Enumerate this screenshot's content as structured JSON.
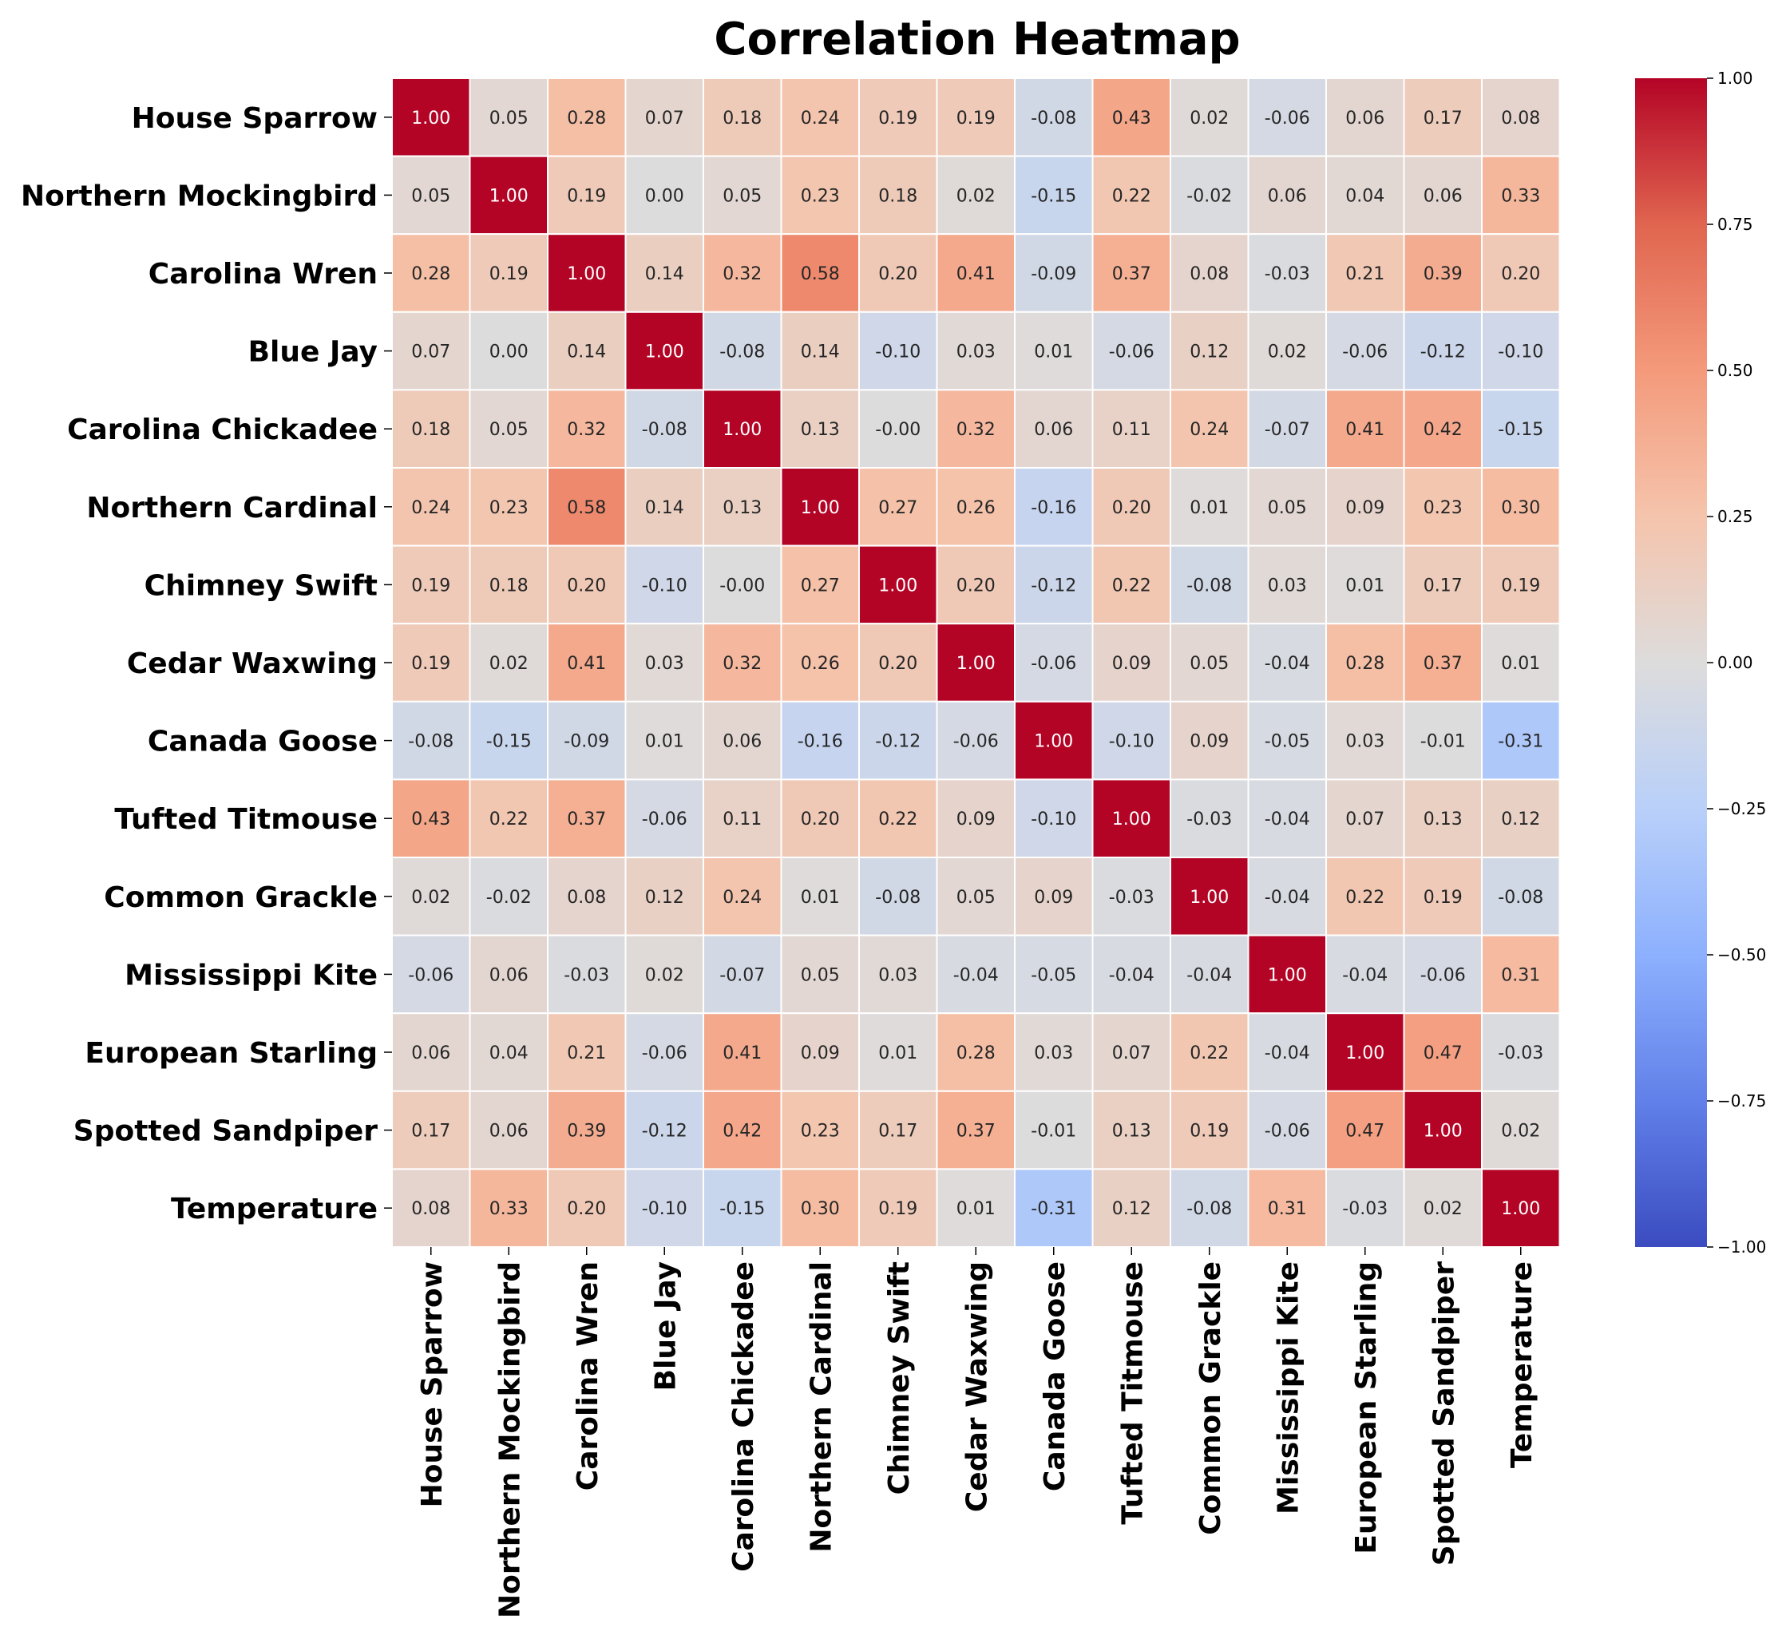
{
  "chart_data": {
    "type": "heatmap",
    "title": "Correlation Heatmap",
    "row_labels": [
      "House Sparrow",
      "Northern Mockingbird",
      "Carolina Wren",
      "Blue Jay",
      "Carolina Chickadee",
      "Northern Cardinal",
      "Chimney Swift",
      "Cedar Waxwing",
      "Canada Goose",
      "Tufted Titmouse",
      "Common Grackle",
      "Mississippi Kite",
      "European Starling",
      "Spotted Sandpiper",
      "Temperature"
    ],
    "col_labels": [
      "House Sparrow",
      "Northern Mockingbird",
      "Carolina Wren",
      "Blue Jay",
      "Carolina Chickadee",
      "Northern Cardinal",
      "Chimney Swift",
      "Cedar Waxwing",
      "Canada Goose",
      "Tufted Titmouse",
      "Common Grackle",
      "Mississippi Kite",
      "European Starling",
      "Spotted Sandpiper",
      "Temperature"
    ],
    "values": [
      [
        1.0,
        0.05,
        0.28,
        0.07,
        0.18,
        0.24,
        0.19,
        0.19,
        -0.08,
        0.43,
        0.02,
        -0.06,
        0.06,
        0.17,
        0.08
      ],
      [
        0.05,
        1.0,
        0.19,
        0.0,
        0.05,
        0.23,
        0.18,
        0.02,
        -0.15,
        0.22,
        -0.02,
        0.06,
        0.04,
        0.06,
        0.33
      ],
      [
        0.28,
        0.19,
        1.0,
        0.14,
        0.32,
        0.58,
        0.2,
        0.41,
        -0.09,
        0.37,
        0.08,
        -0.03,
        0.21,
        0.39,
        0.2
      ],
      [
        0.07,
        0.0,
        0.14,
        1.0,
        -0.08,
        0.14,
        -0.1,
        0.03,
        0.01,
        -0.06,
        0.12,
        0.02,
        -0.06,
        -0.12,
        -0.1
      ],
      [
        0.18,
        0.05,
        0.32,
        -0.08,
        1.0,
        0.13,
        -0.0,
        0.32,
        0.06,
        0.11,
        0.24,
        -0.07,
        0.41,
        0.42,
        -0.15
      ],
      [
        0.24,
        0.23,
        0.58,
        0.14,
        0.13,
        1.0,
        0.27,
        0.26,
        -0.16,
        0.2,
        0.01,
        0.05,
        0.09,
        0.23,
        0.3
      ],
      [
        0.19,
        0.18,
        0.2,
        -0.1,
        -0.0,
        0.27,
        1.0,
        0.2,
        -0.12,
        0.22,
        -0.08,
        0.03,
        0.01,
        0.17,
        0.19
      ],
      [
        0.19,
        0.02,
        0.41,
        0.03,
        0.32,
        0.26,
        0.2,
        1.0,
        -0.06,
        0.09,
        0.05,
        -0.04,
        0.28,
        0.37,
        0.01
      ],
      [
        -0.08,
        -0.15,
        -0.09,
        0.01,
        0.06,
        -0.16,
        -0.12,
        -0.06,
        1.0,
        -0.1,
        0.09,
        -0.05,
        0.03,
        -0.01,
        -0.31
      ],
      [
        0.43,
        0.22,
        0.37,
        -0.06,
        0.11,
        0.2,
        0.22,
        0.09,
        -0.1,
        1.0,
        -0.03,
        -0.04,
        0.07,
        0.13,
        0.12
      ],
      [
        0.02,
        -0.02,
        0.08,
        0.12,
        0.24,
        0.01,
        -0.08,
        0.05,
        0.09,
        -0.03,
        1.0,
        -0.04,
        0.22,
        0.19,
        -0.08
      ],
      [
        -0.06,
        0.06,
        -0.03,
        0.02,
        -0.07,
        0.05,
        0.03,
        -0.04,
        -0.05,
        -0.04,
        -0.04,
        1.0,
        -0.04,
        -0.06,
        0.31
      ],
      [
        0.06,
        0.04,
        0.21,
        -0.06,
        0.41,
        0.09,
        0.01,
        0.28,
        0.03,
        0.07,
        0.22,
        -0.04,
        1.0,
        0.47,
        -0.03
      ],
      [
        0.17,
        0.06,
        0.39,
        -0.12,
        0.42,
        0.23,
        0.17,
        0.37,
        -0.01,
        0.13,
        0.19,
        -0.06,
        0.47,
        1.0,
        0.02
      ],
      [
        0.08,
        0.33,
        0.2,
        -0.1,
        -0.15,
        0.3,
        0.19,
        0.01,
        -0.31,
        0.12,
        -0.08,
        0.31,
        -0.03,
        0.02,
        1.0
      ]
    ],
    "cell_labels": [
      [
        "1.00",
        "0.05",
        "0.28",
        "0.07",
        "0.18",
        "0.24",
        "0.19",
        "0.19",
        "-0.08",
        "0.43",
        "0.02",
        "-0.06",
        "0.06",
        "0.17",
        "0.08"
      ],
      [
        "0.05",
        "1.00",
        "0.19",
        "0.00",
        "0.05",
        "0.23",
        "0.18",
        "0.02",
        "-0.15",
        "0.22",
        "-0.02",
        "0.06",
        "0.04",
        "0.06",
        "0.33"
      ],
      [
        "0.28",
        "0.19",
        "1.00",
        "0.14",
        "0.32",
        "0.58",
        "0.20",
        "0.41",
        "-0.09",
        "0.37",
        "0.08",
        "-0.03",
        "0.21",
        "0.39",
        "0.20"
      ],
      [
        "0.07",
        "0.00",
        "0.14",
        "1.00",
        "-0.08",
        "0.14",
        "-0.10",
        "0.03",
        "0.01",
        "-0.06",
        "0.12",
        "0.02",
        "-0.06",
        "-0.12",
        "-0.10"
      ],
      [
        "0.18",
        "0.05",
        "0.32",
        "-0.08",
        "1.00",
        "0.13",
        "-0.00",
        "0.32",
        "0.06",
        "0.11",
        "0.24",
        "-0.07",
        "0.41",
        "0.42",
        "-0.15"
      ],
      [
        "0.24",
        "0.23",
        "0.58",
        "0.14",
        "0.13",
        "1.00",
        "0.27",
        "0.26",
        "-0.16",
        "0.20",
        "0.01",
        "0.05",
        "0.09",
        "0.23",
        "0.30"
      ],
      [
        "0.19",
        "0.18",
        "0.20",
        "-0.10",
        "-0.00",
        "0.27",
        "1.00",
        "0.20",
        "-0.12",
        "0.22",
        "-0.08",
        "0.03",
        "0.01",
        "0.17",
        "0.19"
      ],
      [
        "0.19",
        "0.02",
        "0.41",
        "0.03",
        "0.32",
        "0.26",
        "0.20",
        "1.00",
        "-0.06",
        "0.09",
        "0.05",
        "-0.04",
        "0.28",
        "0.37",
        "0.01"
      ],
      [
        "-0.08",
        "-0.15",
        "-0.09",
        "0.01",
        "0.06",
        "-0.16",
        "-0.12",
        "-0.06",
        "1.00",
        "-0.10",
        "0.09",
        "-0.05",
        "0.03",
        "-0.01",
        "-0.31"
      ],
      [
        "0.43",
        "0.22",
        "0.37",
        "-0.06",
        "0.11",
        "0.20",
        "0.22",
        "0.09",
        "-0.10",
        "1.00",
        "-0.03",
        "-0.04",
        "0.07",
        "0.13",
        "0.12"
      ],
      [
        "0.02",
        "-0.02",
        "0.08",
        "0.12",
        "0.24",
        "0.01",
        "-0.08",
        "0.05",
        "0.09",
        "-0.03",
        "1.00",
        "-0.04",
        "0.22",
        "0.19",
        "-0.08"
      ],
      [
        "-0.06",
        "0.06",
        "-0.03",
        "0.02",
        "-0.07",
        "0.05",
        "0.03",
        "-0.04",
        "-0.05",
        "-0.04",
        "-0.04",
        "1.00",
        "-0.04",
        "-0.06",
        "0.31"
      ],
      [
        "0.06",
        "0.04",
        "0.21",
        "-0.06",
        "0.41",
        "0.09",
        "0.01",
        "0.28",
        "0.03",
        "0.07",
        "0.22",
        "-0.04",
        "1.00",
        "0.47",
        "-0.03"
      ],
      [
        "0.17",
        "0.06",
        "0.39",
        "-0.12",
        "0.42",
        "0.23",
        "0.17",
        "0.37",
        "-0.01",
        "0.13",
        "0.19",
        "-0.06",
        "0.47",
        "1.00",
        "0.02"
      ],
      [
        "0.08",
        "0.33",
        "0.20",
        "-0.10",
        "-0.15",
        "0.30",
        "0.19",
        "0.01",
        "-0.31",
        "0.12",
        "-0.08",
        "0.31",
        "-0.03",
        "0.02",
        "1.00"
      ]
    ],
    "colormap": "coolwarm",
    "vmin": -1.0,
    "vmax": 1.0,
    "colorbar": {
      "ticks": [
        1.0,
        0.75,
        0.5,
        0.25,
        0.0,
        -0.25,
        -0.5,
        -0.75,
        -1.0
      ],
      "tick_labels": [
        "1.00",
        "0.75",
        "0.50",
        "0.25",
        "0.00",
        "−0.25",
        "−0.50",
        "−0.75",
        "−1.00"
      ]
    },
    "colormap_stops": [
      [
        0.0,
        "#3b4cc0"
      ],
      [
        0.125,
        "#6180e9"
      ],
      [
        0.25,
        "#8db0fe"
      ],
      [
        0.375,
        "#b9d0f9"
      ],
      [
        0.5,
        "#dddcdc"
      ],
      [
        0.625,
        "#f5c4ac"
      ],
      [
        0.75,
        "#f49a7b"
      ],
      [
        0.875,
        "#e0654f"
      ],
      [
        1.0,
        "#b40426"
      ]
    ],
    "grid": false
  }
}
